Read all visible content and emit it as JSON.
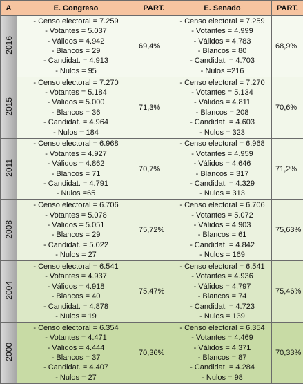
{
  "table": {
    "header": [
      "A",
      "E. Congreso",
      "PART.",
      "E. Senado",
      "PART."
    ],
    "rows": [
      {
        "year": "2016",
        "congreso": [
          "- Censo electoral = 7.259",
          "- Votantes = 5.037",
          "- Válidos = 4.942",
          "- Blancos = 29",
          "- Candidat. = 4.913",
          "- Nulos = 95"
        ],
        "part_congreso": "69,4%",
        "senado": [
          "- Censo electoral = 7.259",
          "- Votantes = 4.999",
          "- Válidos = 4.783",
          "- Blancos = 80",
          "- Candidat. = 4.703",
          "- Nulos =216"
        ],
        "part_senado": "68,9%"
      },
      {
        "year": "2015",
        "congreso": [
          "- Censo electoral = 7.270",
          "- Votantes = 5.184",
          "- Válidos = 5.000",
          "- Blancos = 36",
          "- Candidat. = 4.964",
          "- Nulos = 184"
        ],
        "part_congreso": "71,3%",
        "senado": [
          "- Censo electoral = 7.270",
          "- Votantes = 5.134",
          "- Válidos = 4.811",
          "- Blancos = 208",
          "- Candidat. = 4.603",
          "- Nulos = 323"
        ],
        "part_senado": "70,6%"
      },
      {
        "year": "2011",
        "congreso": [
          "- Censo electoral = 6.968",
          "- Votantes = 4.927",
          "- Válidos = 4.862",
          "- Blancos = 71",
          "- Candidat. = 4.791",
          "- Nulos =65"
        ],
        "part_congreso": "70,7%",
        "senado": [
          "- Censo electoral = 6.968",
          "- Votantes = 4.959",
          "- Válidos = 4.646",
          "- Blancos = 317",
          "- Candidat. = 4.329",
          "- Nulos = 313"
        ],
        "part_senado": "71,2%"
      },
      {
        "year": "2008",
        "congreso": [
          "- Censo electoral = 6.706",
          "- Votantes = 5.078",
          "- Válidos = 5.051",
          "- Blancos = 29",
          "- Candidat. = 5.022",
          "- Nulos = 27"
        ],
        "part_congreso": "75,72%",
        "senado": [
          "- Censo electoral = 6.706",
          "- Votantes = 5.072",
          "- Válidos = 4.903",
          "- Blancos = 61",
          "- Candidat. = 4.842",
          "- Nulos = 169"
        ],
        "part_senado": "75,63%"
      },
      {
        "year": "2004",
        "congreso": [
          "- Censo electoral = 6.541",
          "- Votantes = 4.937",
          "- Válidos = 4.918",
          "- Blancos = 40",
          "- Candidat. = 4.878",
          "- Nulos = 19"
        ],
        "part_congreso": "75,47%",
        "senado": [
          "- Censo electoral = 6.541",
          "- Votantes = 4.936",
          "- Válidos = 4.797",
          "- Blancos = 74",
          "- Candidat. = 4.723",
          "- Nulos = 139"
        ],
        "part_senado": "75,46%"
      },
      {
        "year": "2000",
        "congreso": [
          "- Censo electoral = 6.354",
          "- Votantes = 4.471",
          "- Válidos = 4.444",
          "- Blancos = 37",
          "- Candidat. = 4.407",
          "- Nulos = 27"
        ],
        "part_congreso": "70,36%",
        "senado": [
          "- Censo electoral = 6.354",
          "- Votantes = 4.469",
          "- Válidos = 4.371",
          "- Blancos = 87",
          "- Candidat. = 4.284",
          "- Nulos = 98"
        ],
        "part_senado": "70,33%"
      }
    ]
  }
}
